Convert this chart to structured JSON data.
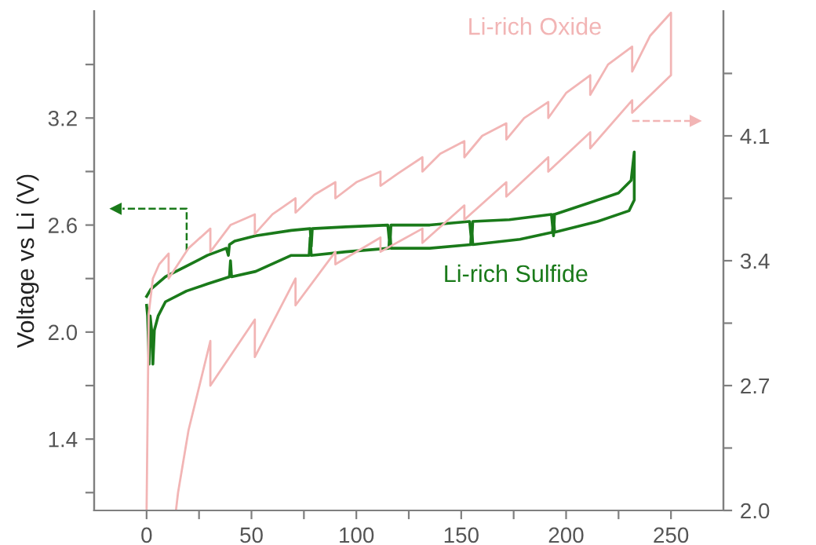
{
  "chart_data": {
    "type": "line",
    "ylabel": "Voltage vs Li (V)",
    "xlim": [
      -25,
      275
    ],
    "xticks": [
      0,
      {
        "value": 25,
        "label": null
      },
      50,
      {
        "value": 75,
        "label": null
      },
      100,
      {
        "value": 125,
        "label": null
      },
      150,
      {
        "value": 175,
        "label": null
      },
      200,
      {
        "value": 225,
        "label": null
      },
      250
    ],
    "ylim": [
      1.0,
      3.8
    ],
    "yticks": [
      {
        "value": 1.1,
        "label": null
      },
      1.4,
      {
        "value": 1.7,
        "label": null
      },
      {
        "value": 2.0,
        "label": "2.0"
      },
      {
        "value": 2.3,
        "label": null
      },
      2.6,
      {
        "value": 2.9,
        "label": null
      },
      3.2,
      {
        "value": 3.5,
        "label": null
      }
    ],
    "y2lim": [
      2.0,
      4.8
    ],
    "y2ticks": [
      {
        "value": 2.0,
        "label": "2.0"
      },
      {
        "value": 2.35,
        "label": null
      },
      2.7,
      {
        "value": 3.05,
        "label": null
      },
      3.4,
      {
        "value": 3.75,
        "label": null
      },
      4.1,
      {
        "value": 4.45,
        "label": null
      }
    ],
    "grid": false,
    "legend": false,
    "series": [
      {
        "name": "Li-rich Oxide",
        "color": "#f2b5b5",
        "axis": "y2",
        "x": [
          0,
          1,
          3,
          6,
          10.5,
          10.5,
          20,
          30.4,
          30.4,
          40,
          51.6,
          51.6,
          60,
          71,
          71,
          80,
          90,
          90,
          100,
          111.5,
          111.5,
          120,
          131.5,
          131.5,
          140,
          151.5,
          151.5,
          160,
          171.5,
          171.5,
          180,
          191.5,
          191.5,
          200,
          211.5,
          211.5,
          220,
          231.5,
          231.5,
          240,
          250,
          250,
          231.5,
          231.5,
          211.5,
          211.5,
          191.5,
          191.5,
          171.5,
          171.5,
          151.5,
          151.5,
          131.5,
          131.5,
          111.5,
          111.5,
          90,
          90,
          71,
          71,
          51.6,
          51.6,
          30.4,
          30.4,
          20,
          15,
          14
        ],
        "values": [
          2.0,
          3.1,
          3.3,
          3.38,
          3.44,
          3.3,
          3.47,
          3.58,
          3.45,
          3.6,
          3.66,
          3.55,
          3.66,
          3.75,
          3.67,
          3.77,
          3.84,
          3.75,
          3.84,
          3.9,
          3.82,
          3.89,
          3.98,
          3.9,
          4.0,
          4.07,
          3.98,
          4.1,
          4.17,
          4.08,
          4.2,
          4.29,
          4.2,
          4.34,
          4.44,
          4.33,
          4.5,
          4.6,
          4.46,
          4.66,
          4.79,
          4.44,
          4.23,
          4.3,
          4.03,
          4.12,
          3.9,
          3.98,
          3.76,
          3.84,
          3.63,
          3.71,
          3.5,
          3.58,
          3.45,
          3.53,
          3.38,
          3.45,
          3.15,
          3.3,
          2.86,
          3.07,
          2.7,
          2.95,
          2.45,
          2.1,
          2.0
        ]
      },
      {
        "name": "Li-rich Sulfide",
        "color": "#1a7a1a",
        "x": [
          0,
          2,
          9,
          19,
          29,
          38,
          39,
          39.5,
          42,
          52,
          69,
          78,
          78.5,
          79,
          95,
          115,
          116,
          116.5,
          135,
          154,
          155,
          155.5,
          173,
          193,
          194,
          194.5,
          210,
          225,
          231,
          232.5,
          232.5,
          230,
          215,
          194.5,
          194,
          193.5,
          178,
          155.5,
          155,
          154.5,
          135,
          116.5,
          116,
          115.5,
          95,
          78.5,
          78,
          77.5,
          69,
          52,
          40.5,
          40,
          39.5,
          29,
          19,
          9,
          5.5,
          3.7,
          3,
          2.5,
          1.7,
          1.2,
          0.5,
          0
        ],
        "values": [
          2.2,
          2.24,
          2.31,
          2.37,
          2.43,
          2.47,
          2.43,
          2.49,
          2.51,
          2.54,
          2.57,
          2.58,
          2.48,
          2.58,
          2.59,
          2.6,
          2.48,
          2.6,
          2.6,
          2.62,
          2.5,
          2.62,
          2.63,
          2.66,
          2.54,
          2.66,
          2.72,
          2.78,
          2.85,
          3.01,
          2.74,
          2.68,
          2.62,
          2.56,
          2.66,
          2.56,
          2.52,
          2.49,
          2.6,
          2.49,
          2.47,
          2.47,
          2.58,
          2.47,
          2.45,
          2.43,
          2.53,
          2.43,
          2.43,
          2.34,
          2.31,
          2.4,
          2.31,
          2.27,
          2.23,
          2.17,
          2.09,
          2.01,
          1.82,
          2.0,
          2.09,
          1.82,
          2.09,
          2.15
        ]
      }
    ]
  }
}
